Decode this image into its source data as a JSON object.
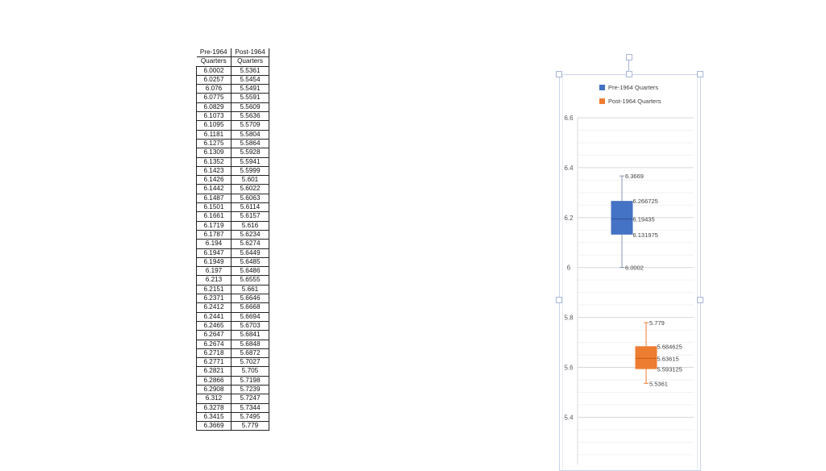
{
  "table": {
    "headers": [
      [
        "Pre-1964",
        "Quarters"
      ],
      [
        "Post-1964",
        "Quarters"
      ]
    ],
    "rows": [
      [
        "6.0002",
        "5.5361"
      ],
      [
        "6.0257",
        "5.5454"
      ],
      [
        "6.076",
        "5.5491"
      ],
      [
        "6.0775",
        "5.5591"
      ],
      [
        "6.0829",
        "5.5609"
      ],
      [
        "6.1073",
        "5.5636"
      ],
      [
        "6.1095",
        "5.5709"
      ],
      [
        "6.1181",
        "5.5804"
      ],
      [
        "6.1275",
        "5.5864"
      ],
      [
        "6.1309",
        "5.5928"
      ],
      [
        "6.1352",
        "5.5941"
      ],
      [
        "6.1423",
        "5.5999"
      ],
      [
        "6.1426",
        "5.601"
      ],
      [
        "6.1442",
        "5.6022"
      ],
      [
        "6.1487",
        "5.6063"
      ],
      [
        "6.1501",
        "5.6114"
      ],
      [
        "6.1661",
        "5.6157"
      ],
      [
        "6.1719",
        "5.616"
      ],
      [
        "6.1787",
        "5.6234"
      ],
      [
        "6.194",
        "5.6274"
      ],
      [
        "6.1947",
        "5.6449"
      ],
      [
        "6.1949",
        "5.6485"
      ],
      [
        "6.197",
        "5.6486"
      ],
      [
        "6.213",
        "5.6555"
      ],
      [
        "6.2151",
        "5.661"
      ],
      [
        "6.2371",
        "5.6646"
      ],
      [
        "6.2412",
        "5.6668"
      ],
      [
        "6.2441",
        "5.6694"
      ],
      [
        "6.2465",
        "5.6703"
      ],
      [
        "6.2647",
        "5.6841"
      ],
      [
        "6.2674",
        "5.6848"
      ],
      [
        "6.2718",
        "5.6872"
      ],
      [
        "6.2771",
        "5.7027"
      ],
      [
        "6.2821",
        "5.705"
      ],
      [
        "6.2866",
        "5.7198"
      ],
      [
        "6.2908",
        "5.7239"
      ],
      [
        "6.312",
        "5.7247"
      ],
      [
        "6.3278",
        "5.7344"
      ],
      [
        "6.3415",
        "5.7495"
      ],
      [
        "6.3669",
        "5.779"
      ]
    ]
  },
  "chart_data": {
    "type": "box",
    "title": "",
    "xlabel": "",
    "ylabel": "",
    "ylim": [
      5.2,
      6.6
    ],
    "yticks": [
      5.4,
      5.6,
      5.8,
      6.0,
      6.2,
      6.4,
      6.6
    ],
    "ytick_labels": [
      "5.4",
      "5.6",
      "5.8",
      "6",
      "6.2",
      "6.4",
      "6.6"
    ],
    "grid": true,
    "legend_position": "top",
    "series": [
      {
        "name": "Pre-1964 Quarters",
        "color": "#4472c4",
        "min": 6.0002,
        "q1": 6.131975,
        "median": 6.19435,
        "q3": 6.266725,
        "max": 6.3669,
        "labels": {
          "max": "6.3669",
          "q3": "6.266725",
          "median": "6.19435",
          "q1": "6.131975",
          "min": "6.0002"
        }
      },
      {
        "name": "Post-1964 Quarters",
        "color": "#ed7d31",
        "min": 5.5361,
        "q1": 5.593125,
        "median": 5.63615,
        "q3": 5.684625,
        "max": 5.779,
        "labels": {
          "max": "5.779",
          "q3": "5.684625",
          "median": "5.63615",
          "q1": "5.593125",
          "min": "5.5361"
        }
      }
    ]
  }
}
